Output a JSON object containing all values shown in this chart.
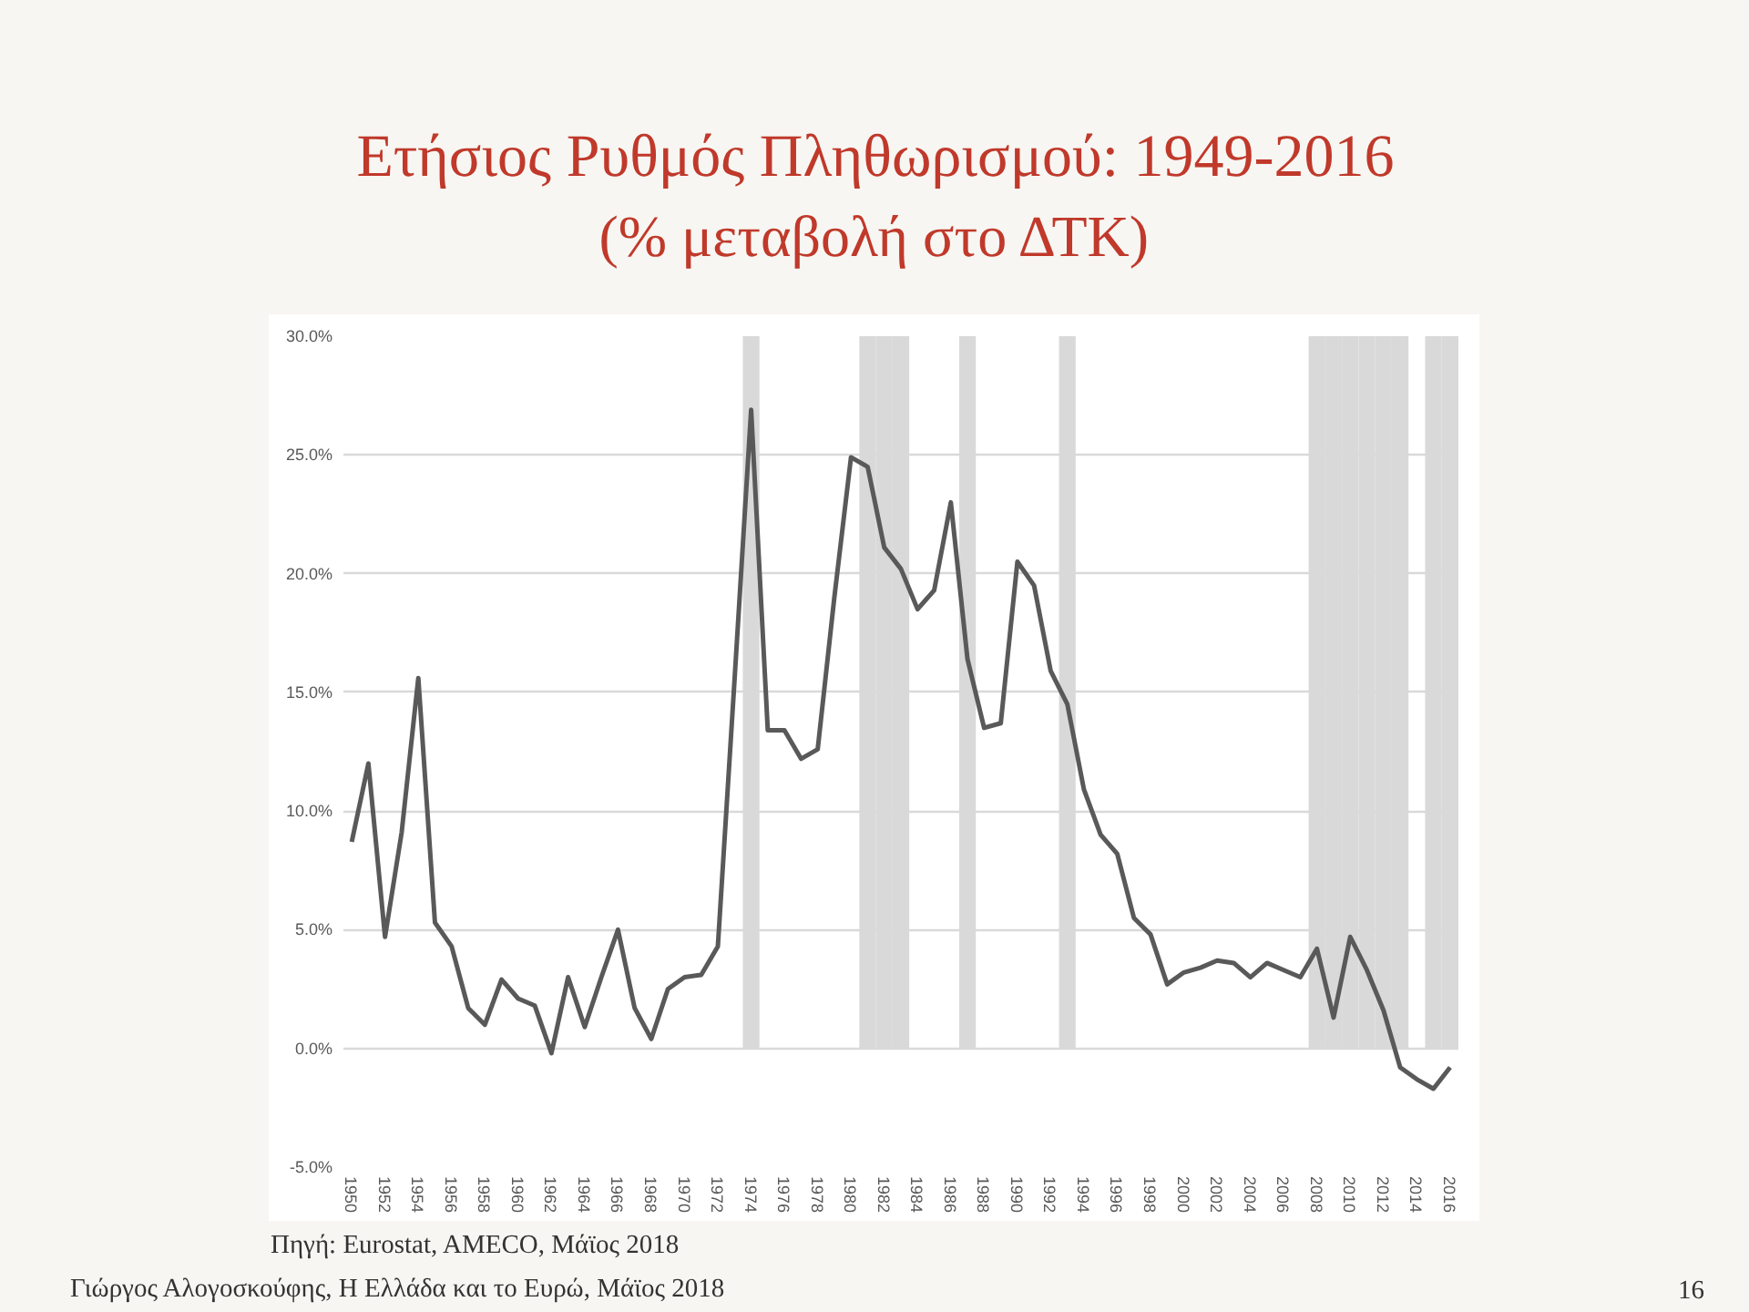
{
  "chart_data": {
    "type": "line",
    "title": "Ετήσιος Ρυθμός Πληθωρισμού: 1949-2016",
    "subtitle": "(% μεταβολή στο ΔΤΚ)",
    "annotations": [
      "Πηγή: Eurostat, AMECO, Μάϊος 2018",
      "Γιώργος Αλογοσκούφης, Η Ελλάδα και το Ευρώ, Μάϊος 2018",
      "16"
    ],
    "x": [
      1950,
      1951,
      1952,
      1953,
      1954,
      1955,
      1956,
      1957,
      1958,
      1959,
      1960,
      1961,
      1962,
      1963,
      1964,
      1965,
      1966,
      1967,
      1968,
      1969,
      1970,
      1971,
      1972,
      1973,
      1974,
      1975,
      1976,
      1977,
      1978,
      1979,
      1980,
      1981,
      1982,
      1983,
      1984,
      1985,
      1986,
      1987,
      1988,
      1989,
      1990,
      1991,
      1992,
      1993,
      1994,
      1995,
      1996,
      1997,
      1998,
      1999,
      2000,
      2001,
      2002,
      2003,
      2004,
      2005,
      2006,
      2007,
      2008,
      2009,
      2010,
      2011,
      2012,
      2013,
      2014,
      2015,
      2016
    ],
    "series": [
      {
        "type": "bar",
        "color": "#d9d9d9",
        "x": [
          1974,
          1981,
          1982,
          1983,
          1987,
          1993,
          2008,
          2009,
          2010,
          2011,
          2012,
          2013,
          2015,
          2016
        ],
        "values": [
          30,
          30,
          30,
          30,
          30,
          30,
          30,
          30,
          30,
          30,
          30,
          30,
          30,
          30
        ]
      },
      {
        "color": "#595959",
        "values": [
          8.7,
          12.0,
          4.7,
          9.1,
          15.6,
          5.3,
          4.3,
          1.7,
          1.0,
          2.9,
          2.1,
          1.8,
          -0.2,
          3.0,
          0.9,
          3.0,
          5.0,
          1.7,
          0.4,
          2.5,
          3.0,
          3.1,
          4.3,
          15.5,
          26.9,
          13.4,
          13.4,
          12.2,
          12.6,
          19.0,
          24.9,
          24.5,
          21.1,
          20.2,
          18.5,
          19.3,
          23.0,
          16.4,
          13.5,
          13.7,
          20.5,
          19.5,
          15.9,
          14.5,
          10.9,
          9.0,
          8.2,
          5.5,
          4.8,
          2.7,
          3.2,
          3.4,
          3.7,
          3.6,
          3.0,
          3.6,
          3.3,
          3.0,
          4.2,
          1.3,
          4.7,
          3.3,
          1.6,
          -0.8,
          -1.3,
          -1.7,
          -0.8
        ]
      }
    ],
    "xlim": [
      1949.5,
      2016.5
    ],
    "xticks": [
      1950,
      1952,
      1954,
      1956,
      1958,
      1960,
      1962,
      1964,
      1966,
      1968,
      1970,
      1972,
      1974,
      1976,
      1978,
      1980,
      1982,
      1984,
      1986,
      1988,
      1990,
      1992,
      1994,
      1996,
      1998,
      2000,
      2002,
      2004,
      2006,
      2008,
      2010,
      2012,
      2014,
      2016
    ],
    "ylim": [
      -5,
      30
    ],
    "yticks": [
      {
        "value": -5,
        "label": "-5.0%"
      },
      {
        "value": 0,
        "label": "0.0%"
      },
      {
        "value": 5,
        "label": "5.0%"
      },
      {
        "value": 10,
        "label": "10.0%"
      },
      {
        "value": 15,
        "label": "15.0%"
      },
      {
        "value": 20,
        "label": "20.0%"
      },
      {
        "value": 25,
        "label": "25.0%"
      },
      {
        "value": 30,
        "label": "30.0%"
      }
    ],
    "grid": "y",
    "marker": "none",
    "line_style": "solid"
  }
}
